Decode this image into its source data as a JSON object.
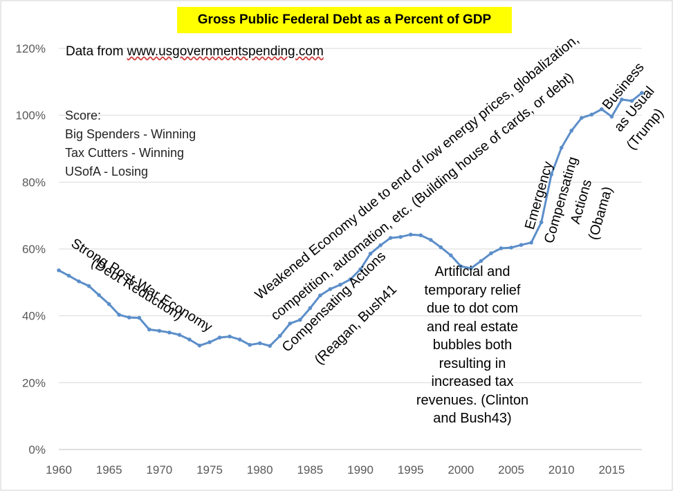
{
  "chart_data": {
    "type": "line",
    "title": "Gross Public Federal Debt as a Percent of GDP",
    "source_note_prefix": "Data from ",
    "source_note_url": "www.usgovernmentspending.com",
    "xlabel": "",
    "ylabel": "",
    "xlim": [
      1960,
      2018
    ],
    "ylim": [
      0,
      120
    ],
    "x_ticks": [
      "1960",
      "1965",
      "1970",
      "1975",
      "1980",
      "1985",
      "1990",
      "1995",
      "2000",
      "2005",
      "2010",
      "2015"
    ],
    "y_ticks": [
      "0%",
      "20%",
      "40%",
      "60%",
      "80%",
      "100%",
      "120%"
    ],
    "grid": true,
    "line_color": "#5b8ec9",
    "x": [
      1960,
      1961,
      1962,
      1963,
      1964,
      1965,
      1966,
      1967,
      1968,
      1969,
      1970,
      1971,
      1972,
      1973,
      1974,
      1975,
      1976,
      1977,
      1978,
      1979,
      1980,
      1981,
      1982,
      1983,
      1984,
      1985,
      1986,
      1987,
      1988,
      1989,
      1990,
      1991,
      1992,
      1993,
      1994,
      1995,
      1996,
      1997,
      1998,
      1999,
      2000,
      2001,
      2002,
      2003,
      2004,
      2005,
      2006,
      2007,
      2008,
      2009,
      2010,
      2011,
      2012,
      2013,
      2014,
      2015,
      2016,
      2017,
      2018
    ],
    "values": [
      53.6,
      52.0,
      50.3,
      48.9,
      46.2,
      43.5,
      40.3,
      39.5,
      39.4,
      35.9,
      35.5,
      35.0,
      34.3,
      32.9,
      31.1,
      32.1,
      33.5,
      33.8,
      32.9,
      31.3,
      31.8,
      31.0,
      34.0,
      37.7,
      38.8,
      42.3,
      46.1,
      48.0,
      49.3,
      50.9,
      53.9,
      58.6,
      61.1,
      63.3,
      63.6,
      64.3,
      64.1,
      62.7,
      60.5,
      58.1,
      54.8,
      54.2,
      56.4,
      58.7,
      60.2,
      60.4,
      61.2,
      61.9,
      68.0,
      82.3,
      90.3,
      95.4,
      99.2,
      100.2,
      101.8,
      99.6,
      104.7,
      104.3,
      106.7
    ]
  },
  "score": {
    "heading": "Score:",
    "lines": [
      "Big Spenders - Winning",
      "Tax Cutters - Winning",
      "USofA - Losing"
    ]
  },
  "annotations": {
    "post_war_1": "Strong Post-War Economy",
    "post_war_2": "(Debt Reduction)",
    "reagan_1": "Compensating Actions",
    "reagan_2": "(Reagan, Bush41",
    "weakened_1": "Weakened Economy due to end of low energy prices, globalization,",
    "weakened_2": "competition, automation, etc. (Building house of cards, or debt)",
    "relief_lines": [
      "Artificial and",
      "temporary relief",
      "due to dot com",
      "and real estate",
      "bubbles both",
      "resulting in",
      "increased tax",
      "revenues. (Clinton",
      "and Bush43)"
    ],
    "obama_1": "Emergency",
    "obama_2": "Compensating",
    "obama_3": "Actions",
    "obama_4": "(Obama)",
    "trump_1": "Business",
    "trump_2": "as Usual",
    "trump_3": "(Trump)"
  }
}
